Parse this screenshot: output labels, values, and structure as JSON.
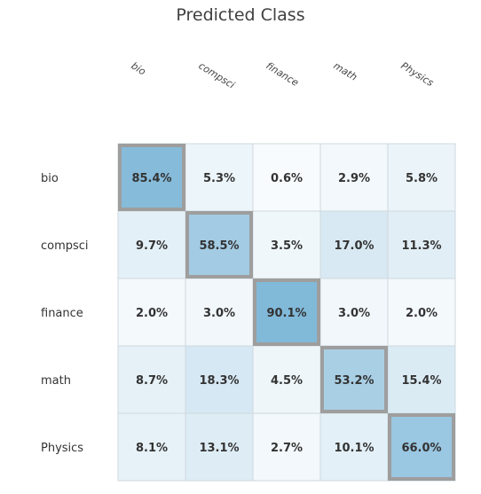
{
  "chart_data": {
    "type": "heatmap",
    "title": "Predicted Class",
    "categories": [
      "bio",
      "compsci",
      "finance",
      "math",
      "Physics"
    ],
    "rows": [
      "bio",
      "compsci",
      "finance",
      "math",
      "Physics"
    ],
    "values": [
      [
        85.4,
        5.3,
        0.6,
        2.9,
        5.8
      ],
      [
        9.7,
        58.5,
        3.5,
        17.0,
        11.3
      ],
      [
        2.0,
        3.0,
        90.1,
        3.0,
        2.0
      ],
      [
        8.7,
        18.3,
        4.5,
        53.2,
        15.4
      ],
      [
        8.1,
        13.1,
        2.7,
        10.1,
        66.0
      ]
    ],
    "cell_labels": [
      [
        "85.4%",
        "5.3%",
        "0.6%",
        "2.9%",
        "5.8%"
      ],
      [
        "9.7%",
        "58.5%",
        "3.5%",
        "17.0%",
        "11.3%"
      ],
      [
        "2.0%",
        "3.0%",
        "90.1%",
        "3.0%",
        "2.0%"
      ],
      [
        "8.7%",
        "18.3%",
        "4.5%",
        "53.2%",
        "15.4%"
      ],
      [
        "8.1%",
        "13.1%",
        "2.7%",
        "10.1%",
        "66.0%"
      ]
    ],
    "diagonal_highlight": true,
    "colors": {
      "low": "#ffffff",
      "high": "#77b3d6",
      "highlight_border": "#9e9e9e",
      "grid": "#cfd8de"
    }
  }
}
